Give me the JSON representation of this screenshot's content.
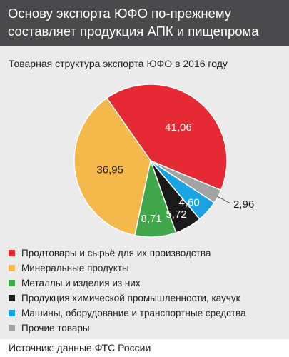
{
  "headline": "Основу экспорта ЮФО по-прежнему составляет продукция АПК и пищепрома",
  "source": "Источник: данные ФТС России",
  "colors": {
    "header_bg": "#4a4a4c",
    "panel_bg": "#ebebeb",
    "red": "#e52a34",
    "orange": "#f5b84a",
    "green": "#3fa64a",
    "black": "#1a1a1a",
    "blue": "#1aa3e3",
    "gray": "#a3a3a3"
  },
  "chart_data": {
    "type": "pie",
    "title": "Товарная структура экспорта ЮФО в 2016 году",
    "slices": [
      {
        "label": "Продтовары и сырьё для их производства",
        "value": 41.06,
        "value_label": "41,06",
        "color": "#e52a34"
      },
      {
        "label": "Минеральные продукты",
        "value": 36.95,
        "value_label": "36,95",
        "color": "#f5b84a"
      },
      {
        "label": "Металлы и изделия из них",
        "value": 8.71,
        "value_label": "8,71",
        "color": "#3fa64a"
      },
      {
        "label": "Продукция химической промышленности, каучук",
        "value": 5.72,
        "value_label": "5,72",
        "color": "#1a1a1a"
      },
      {
        "label": "Машины, оборудование и транспортные средства",
        "value": 4.6,
        "value_label": "4,60",
        "color": "#1aa3e3"
      },
      {
        "label": "Прочие товары",
        "value": 2.96,
        "value_label": "2,96",
        "color": "#a3a3a3"
      }
    ],
    "legend_position": "bottom"
  }
}
